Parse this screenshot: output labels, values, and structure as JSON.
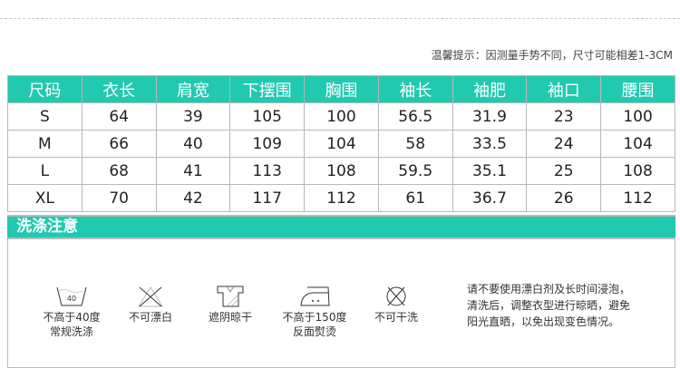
{
  "tip": "温馨提示：因测量手势不同，尺寸可能相差1-3CM",
  "table": {
    "headers": [
      "尺码",
      "衣长",
      "肩宽",
      "下摆围",
      "胸围",
      "袖长",
      "袖肥",
      "袖口",
      "腰围"
    ],
    "rows": [
      [
        "S",
        "64",
        "39",
        "105",
        "100",
        "56.5",
        "31.9",
        "23",
        "100"
      ],
      [
        "M",
        "66",
        "40",
        "109",
        "104",
        "58",
        "33.5",
        "24",
        "104"
      ],
      [
        "L",
        "68",
        "41",
        "113",
        "108",
        "59.5",
        "35.1",
        "25",
        "108"
      ],
      [
        "XL",
        "70",
        "42",
        "117",
        "112",
        "61",
        "36.7",
        "26",
        "112"
      ]
    ]
  },
  "care": {
    "title": "洗涤注意",
    "items": [
      {
        "icon": "wash-40-icon",
        "temp": "40",
        "label1": "不高于40度",
        "label2": "常规洗涤"
      },
      {
        "icon": "no-bleach-icon",
        "label1": "不可漂白",
        "label2": ""
      },
      {
        "icon": "shade-dry-icon",
        "label1": "遮阴晾干",
        "label2": ""
      },
      {
        "icon": "iron-icon",
        "label1": "不高于150度",
        "label2": "反面熨烫"
      },
      {
        "icon": "no-dry-clean-icon",
        "label1": "不可干洗",
        "label2": ""
      }
    ],
    "note": [
      "请不要使用漂白剂及长时间浸泡，",
      "清洗后，调整衣型进行晾晒，避免",
      "阳光直晒，以免出现变色情况。"
    ]
  },
  "colors": {
    "accent": "#20c9b0"
  }
}
